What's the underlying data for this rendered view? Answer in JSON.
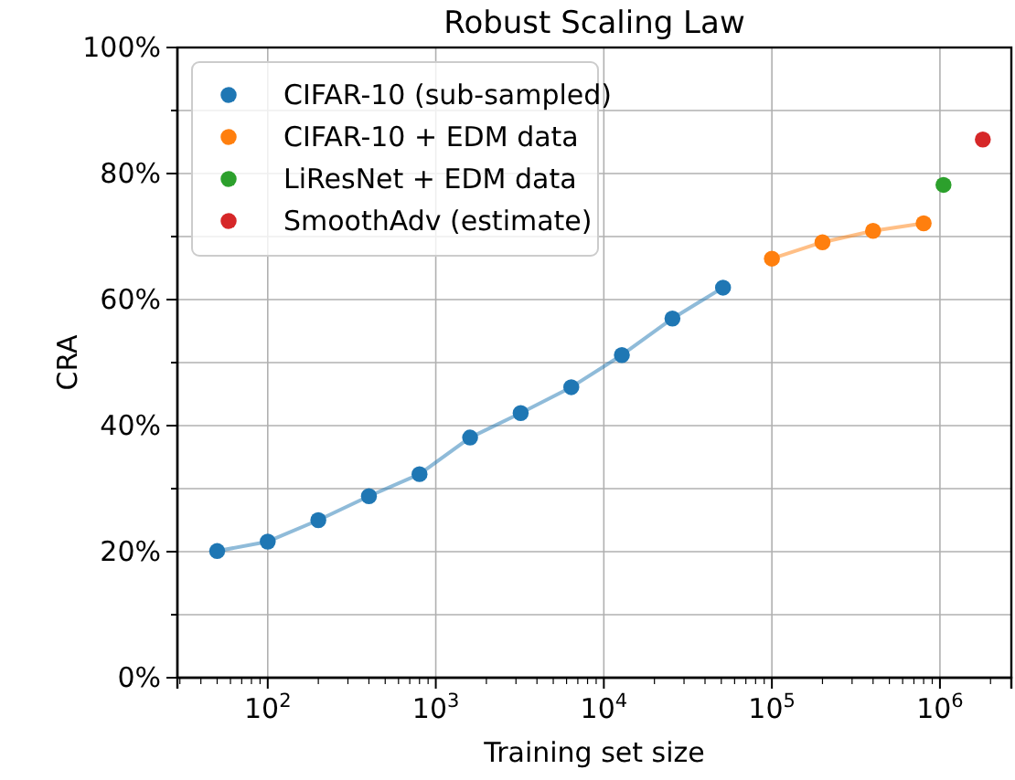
{
  "chart_data": {
    "type": "line",
    "title": "Robust Scaling Law",
    "xlabel": "Training set size",
    "ylabel": "CRA",
    "log": "x",
    "grid": true,
    "legend": "top left",
    "marker": "circle",
    "xlim": [
      29,
      2660000
    ],
    "xticks": [
      {
        "value": 100,
        "label": "10$^{2}$"
      },
      {
        "value": 1000,
        "label": "10$^{3}$"
      },
      {
        "value": 10000,
        "label": "10$^{4}$"
      },
      {
        "value": 100000,
        "label": "10$^{5}$"
      },
      {
        "value": 1000000,
        "label": "10$^{6}$"
      }
    ],
    "ylim": [
      0,
      100
    ],
    "yticks": [
      {
        "value": 0,
        "label": "0%"
      },
      {
        "value": 10,
        "label": null
      },
      {
        "value": 20,
        "label": "20%"
      },
      {
        "value": 30,
        "label": null
      },
      {
        "value": 40,
        "label": "40%"
      },
      {
        "value": 50,
        "label": null
      },
      {
        "value": 60,
        "label": "60%"
      },
      {
        "value": 70,
        "label": null
      },
      {
        "value": 80,
        "label": "80%"
      },
      {
        "value": 90,
        "label": null
      },
      {
        "value": 100,
        "label": "100%"
      }
    ],
    "series": [
      {
        "name": "CIFAR-10 (sub-sampled)",
        "color": "#1f77b4",
        "x": [
          50,
          100,
          200,
          400,
          800,
          1600,
          3200,
          6400,
          12800,
          25600,
          51200
        ],
        "values": [
          20.1,
          21.6,
          25.0,
          28.8,
          32.3,
          38.1,
          42.0,
          46.1,
          51.2,
          57.0,
          61.9
        ]
      },
      {
        "name": "CIFAR-10 + EDM data",
        "color": "#ff7f0e",
        "x": [
          100000,
          200000,
          400000,
          800000
        ],
        "values": [
          66.5,
          69.1,
          70.9,
          72.1
        ]
      },
      {
        "name": "LiResNet + EDM data",
        "type": "scatter",
        "color": "#2ca02c",
        "x": [
          1050000
        ],
        "values": [
          78.2
        ]
      },
      {
        "name": "SmoothAdv (estimate)",
        "type": "scatter",
        "color": "#d62728",
        "x": [
          1800000
        ],
        "values": [
          85.4
        ]
      }
    ]
  }
}
